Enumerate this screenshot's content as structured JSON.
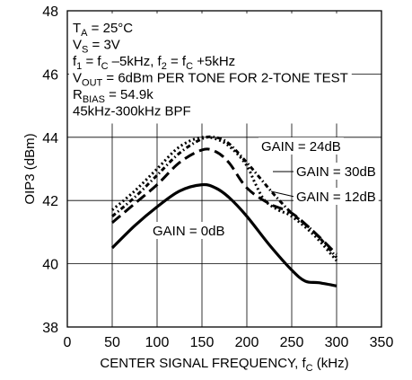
{
  "chart_data": {
    "type": "line",
    "xlabel": "CENTER SIGNAL FREQUENCY, f",
    "xlabel_sub": "C",
    "xlabel_unit": " (kHz)",
    "ylabel": "OIP3 (dBm)",
    "xlim": [
      0,
      350
    ],
    "ylim": [
      38,
      48
    ],
    "x_ticks": [
      0,
      50,
      100,
      150,
      200,
      250,
      300,
      350
    ],
    "y_ticks": [
      38,
      40,
      42,
      44,
      46,
      48
    ],
    "grid": true,
    "conditions": [
      {
        "parts": [
          {
            "t": "T"
          },
          {
            "t": "A",
            "sub": true
          },
          {
            "t": " = 25°C"
          }
        ]
      },
      {
        "parts": [
          {
            "t": "V"
          },
          {
            "t": "S",
            "sub": true
          },
          {
            "t": " = 3V"
          }
        ]
      },
      {
        "parts": [
          {
            "t": "f"
          },
          {
            "t": "1",
            "sub": true
          },
          {
            "t": " = f"
          },
          {
            "t": "C",
            "sub": true
          },
          {
            "t": " –5kHz, f"
          },
          {
            "t": "2",
            "sub": true
          },
          {
            "t": " = f"
          },
          {
            "t": "C",
            "sub": true
          },
          {
            "t": " +5kHz"
          }
        ]
      },
      {
        "parts": [
          {
            "t": "V"
          },
          {
            "t": "OUT",
            "sub": true
          },
          {
            "t": " = 6dBm PER TONE FOR 2-TONE TEST"
          }
        ]
      },
      {
        "parts": [
          {
            "t": "R"
          },
          {
            "t": "BIAS",
            "sub": true
          },
          {
            "t": " = 54.9k"
          }
        ]
      },
      {
        "parts": [
          {
            "t": "45kHz-300kHz BPF"
          }
        ]
      }
    ],
    "series": [
      {
        "name": "GAIN = 0dB",
        "style": "solid",
        "x": [
          50,
          75,
          100,
          125,
          150,
          165,
          180,
          200,
          225,
          250,
          265,
          280,
          300
        ],
        "y": [
          40.5,
          41.2,
          41.8,
          42.3,
          42.5,
          42.4,
          42.1,
          41.5,
          40.6,
          39.8,
          39.45,
          39.4,
          39.3
        ]
      },
      {
        "name": "GAIN = 12dB",
        "style": "dashed",
        "x": [
          50,
          75,
          100,
          125,
          150,
          165,
          180,
          200,
          225,
          250,
          275,
          300
        ],
        "y": [
          41.3,
          41.9,
          42.5,
          43.2,
          43.6,
          43.55,
          43.2,
          42.4,
          41.9,
          41.6,
          41.0,
          40.3
        ]
      },
      {
        "name": "GAIN = 24dB",
        "style": "dash-dot",
        "x": [
          50,
          75,
          100,
          125,
          150,
          165,
          180,
          200,
          215,
          230,
          250,
          275,
          300
        ],
        "y": [
          41.5,
          42.1,
          42.8,
          43.5,
          43.95,
          44.0,
          43.8,
          43.2,
          42.7,
          42.2,
          41.6,
          41.0,
          40.2
        ]
      },
      {
        "name": "GAIN = 30dB",
        "style": "dotted",
        "x": [
          50,
          75,
          100,
          125,
          150,
          170,
          185,
          200,
          210,
          220,
          235,
          250,
          275,
          300
        ],
        "y": [
          41.7,
          42.3,
          43.0,
          43.7,
          44.0,
          43.9,
          43.6,
          43.1,
          42.5,
          42.0,
          41.7,
          41.5,
          40.9,
          40.1
        ]
      }
    ]
  }
}
